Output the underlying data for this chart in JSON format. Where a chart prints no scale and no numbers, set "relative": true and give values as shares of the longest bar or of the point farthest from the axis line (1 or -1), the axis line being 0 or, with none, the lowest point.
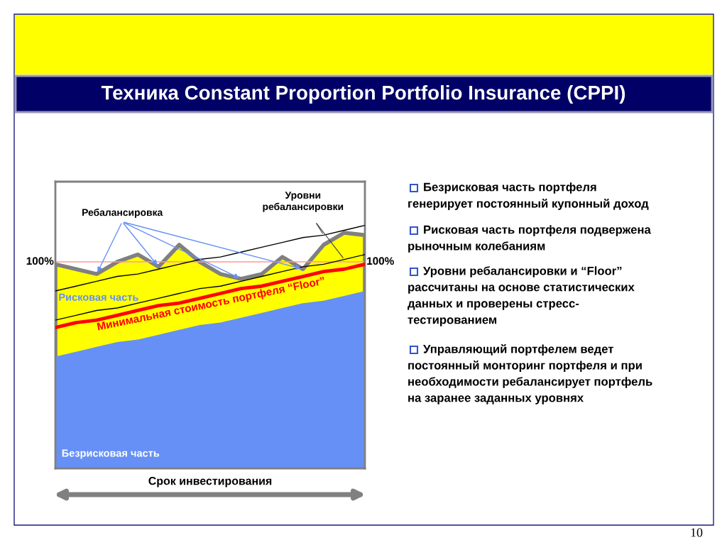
{
  "chart_data": {
    "type": "area",
    "relative": true,
    "title": "Техника Constant Proportion Portfolio Insurance (CPPI)",
    "xlabel": "Срок инвестирования",
    "categories": [
      null,
      null,
      null,
      null,
      null,
      null,
      null,
      null,
      null,
      null,
      null,
      null,
      null,
      null,
      null,
      null
    ],
    "series": [
      {
        "name": "Рисковая часть",
        "color": "#ffff00",
        "values": [
          0.84,
          0.82,
          0.8,
          0.85,
          0.88,
          0.83,
          0.92,
          0.85,
          0.8,
          0.78,
          0.8,
          0.87,
          0.82,
          0.92,
          0.97,
          0.96
        ]
      },
      {
        "name": "Безрисковая часть",
        "color": "#6690f5",
        "values": [
          0.46,
          0.48,
          0.5,
          0.52,
          0.53,
          0.55,
          0.57,
          0.59,
          0.6,
          0.62,
          0.64,
          0.66,
          0.68,
          0.69,
          0.71,
          0.73
        ]
      },
      {
        "type": "line",
        "color": "#000000",
        "values": [
          0.73,
          0.75,
          0.77,
          0.79,
          0.8,
          0.82,
          0.84,
          0.86,
          0.87,
          0.89,
          0.91,
          0.93,
          0.95,
          0.96,
          0.98,
          1.0
        ]
      },
      {
        "type": "line",
        "color": "#000000",
        "values": [
          0.61,
          0.63,
          0.65,
          0.66,
          0.68,
          0.7,
          0.72,
          0.74,
          0.75,
          0.77,
          0.79,
          0.81,
          0.83,
          0.84,
          0.86,
          0.88
        ]
      },
      {
        "type": "line",
        "color": "#ff0000",
        "values": [
          0.58,
          0.6,
          0.61,
          0.63,
          0.65,
          0.67,
          0.68,
          0.7,
          0.72,
          0.74,
          0.75,
          0.77,
          0.79,
          0.81,
          0.82,
          0.84
        ]
      }
    ],
    "ref_lines": [
      {
        "axis": "y",
        "value": 0.85,
        "color": "#ff9999"
      }
    ],
    "annotations": [
      "Ребалансировка",
      "Уровни\nребалансировки",
      "Безрисковая часть портфеля\nгенерирует постоянный купонный доход",
      "Рисковая часть портфеля подвержена\nрыночным колебаниям",
      "Уровни ребалансировки и “Floor”\nрассчитаны на основе статистических\nданных и проверены стресс-\nтестированием",
      "Управляющий портфелем ведет\nпостоянный монторинг портфеля и при\nнеобходимости ребалансирует портфель\nна заранее заданных уровнях",
      "10",
      "100%",
      "Минимальная стоимость портфеля “Floor”"
    ]
  }
}
